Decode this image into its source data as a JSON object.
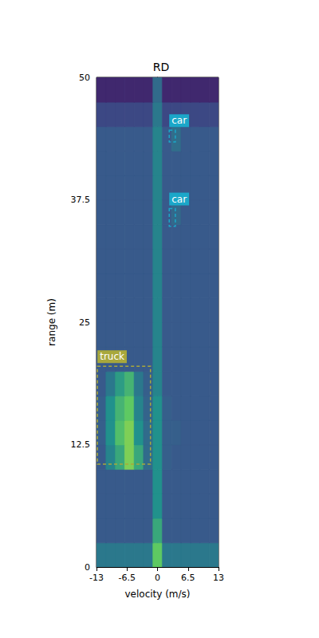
{
  "chart_data": {
    "type": "heatmap",
    "title": "RD",
    "x_label": "velocity (m/s)",
    "y_label": "range (m)",
    "xlim": [
      -13,
      13
    ],
    "xticks": [
      -13,
      -6.5,
      0,
      6.5,
      13
    ],
    "ylim": [
      0,
      50
    ],
    "yticks": [
      0,
      12.5,
      25,
      37.5,
      50
    ],
    "grid": false,
    "velocity_bins": [
      -13,
      -11,
      -9,
      -7,
      -5,
      -3,
      -1,
      1,
      3,
      5,
      7,
      9,
      11,
      13
    ],
    "range_bins": [
      0,
      2.5,
      5,
      7.5,
      10,
      12.5,
      15,
      17.5,
      20,
      22.5,
      25,
      27.5,
      30,
      32.5,
      35,
      37.5,
      40,
      42.5,
      45,
      47.5,
      50
    ],
    "color_range": [
      0,
      1
    ],
    "intensity": [
      [
        0.4,
        0.4,
        0.4,
        0.4,
        0.4,
        0.4,
        0.75,
        0.4,
        0.4,
        0.4,
        0.4,
        0.4,
        0.4
      ],
      [
        0.28,
        0.28,
        0.28,
        0.28,
        0.28,
        0.28,
        0.6,
        0.28,
        0.28,
        0.28,
        0.28,
        0.28,
        0.28
      ],
      [
        0.28,
        0.28,
        0.28,
        0.28,
        0.28,
        0.28,
        0.5,
        0.28,
        0.28,
        0.28,
        0.28,
        0.28,
        0.28
      ],
      [
        0.28,
        0.28,
        0.28,
        0.28,
        0.28,
        0.28,
        0.5,
        0.28,
        0.28,
        0.28,
        0.28,
        0.28,
        0.28
      ],
      [
        0.28,
        0.45,
        0.6,
        0.8,
        0.6,
        0.35,
        0.5,
        0.3,
        0.28,
        0.28,
        0.28,
        0.28,
        0.28
      ],
      [
        0.3,
        0.5,
        0.7,
        0.8,
        0.5,
        0.35,
        0.5,
        0.3,
        0.3,
        0.28,
        0.28,
        0.28,
        0.28
      ],
      [
        0.3,
        0.5,
        0.65,
        0.75,
        0.45,
        0.32,
        0.5,
        0.3,
        0.28,
        0.28,
        0.28,
        0.28,
        0.28
      ],
      [
        0.28,
        0.4,
        0.55,
        0.65,
        0.4,
        0.3,
        0.45,
        0.28,
        0.28,
        0.28,
        0.28,
        0.28,
        0.28
      ],
      [
        0.28,
        0.28,
        0.28,
        0.28,
        0.28,
        0.28,
        0.45,
        0.28,
        0.28,
        0.28,
        0.28,
        0.28,
        0.28
      ],
      [
        0.28,
        0.28,
        0.28,
        0.28,
        0.28,
        0.28,
        0.45,
        0.28,
        0.28,
        0.28,
        0.28,
        0.28,
        0.28
      ],
      [
        0.28,
        0.28,
        0.28,
        0.28,
        0.28,
        0.28,
        0.45,
        0.28,
        0.28,
        0.28,
        0.28,
        0.28,
        0.28
      ],
      [
        0.28,
        0.28,
        0.28,
        0.28,
        0.28,
        0.28,
        0.45,
        0.28,
        0.28,
        0.28,
        0.28,
        0.28,
        0.28
      ],
      [
        0.28,
        0.28,
        0.28,
        0.28,
        0.28,
        0.28,
        0.45,
        0.28,
        0.28,
        0.28,
        0.28,
        0.28,
        0.28
      ],
      [
        0.28,
        0.28,
        0.28,
        0.28,
        0.28,
        0.28,
        0.45,
        0.28,
        0.28,
        0.28,
        0.28,
        0.28,
        0.28
      ],
      [
        0.28,
        0.28,
        0.28,
        0.28,
        0.28,
        0.28,
        0.45,
        0.28,
        0.34,
        0.28,
        0.28,
        0.28,
        0.28
      ],
      [
        0.28,
        0.28,
        0.28,
        0.28,
        0.28,
        0.28,
        0.45,
        0.28,
        0.28,
        0.28,
        0.28,
        0.28,
        0.28
      ],
      [
        0.28,
        0.28,
        0.28,
        0.28,
        0.28,
        0.28,
        0.45,
        0.28,
        0.28,
        0.28,
        0.28,
        0.28,
        0.28
      ],
      [
        0.28,
        0.28,
        0.28,
        0.28,
        0.28,
        0.28,
        0.45,
        0.28,
        0.36,
        0.28,
        0.28,
        0.28,
        0.28
      ],
      [
        0.22,
        0.22,
        0.22,
        0.22,
        0.22,
        0.22,
        0.4,
        0.22,
        0.22,
        0.22,
        0.22,
        0.22,
        0.22
      ],
      [
        0.12,
        0.12,
        0.12,
        0.12,
        0.12,
        0.12,
        0.35,
        0.12,
        0.12,
        0.12,
        0.12,
        0.12,
        0.12
      ]
    ],
    "boxes": [
      {
        "label": "truck",
        "color": "#a8a83c",
        "xlim": [
          -12.8,
          -1.5
        ],
        "ylim": [
          10.5,
          20.5
        ]
      },
      {
        "label": "car",
        "color": "#1ba7c9",
        "xlim": [
          2.5,
          3.8
        ],
        "ylim": [
          43.4,
          44.6
        ]
      },
      {
        "label": "car",
        "color": "#1ba7c9",
        "xlim": [
          2.5,
          3.8
        ],
        "ylim": [
          34.8,
          36.6
        ]
      }
    ]
  }
}
